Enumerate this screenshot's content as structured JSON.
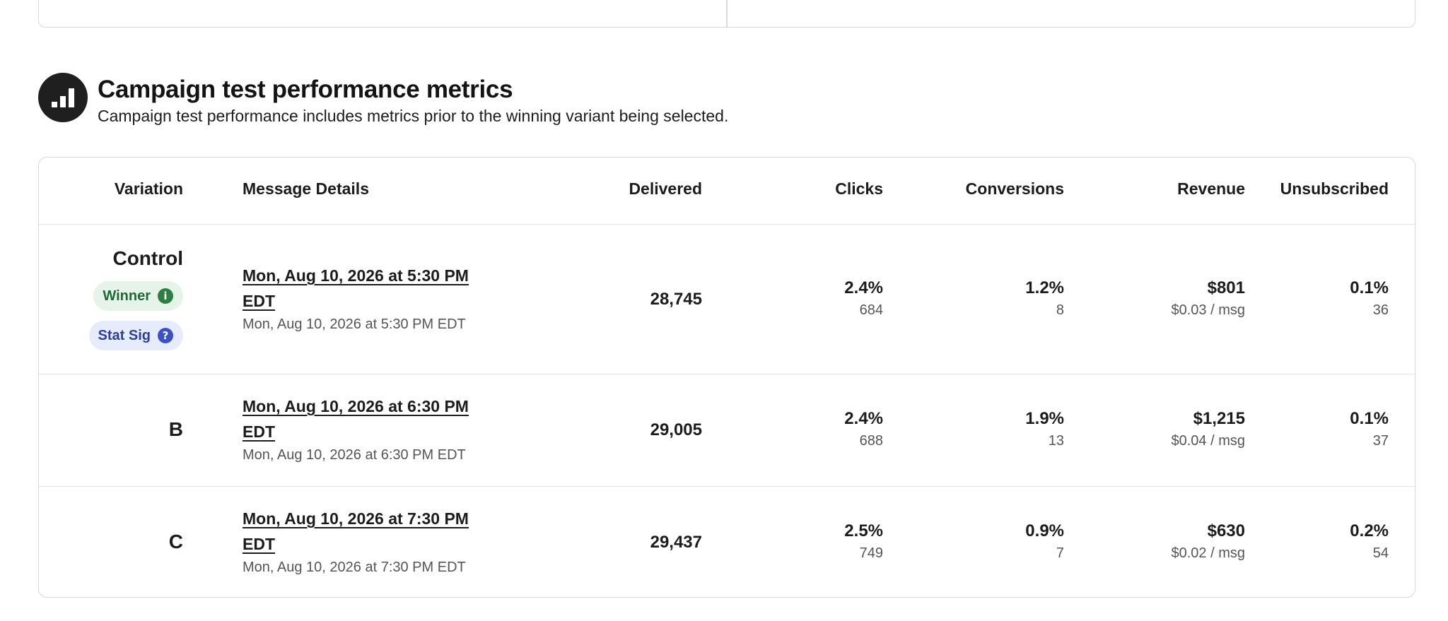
{
  "section": {
    "title": "Campaign test performance metrics",
    "subtitle": "Campaign test performance includes metrics prior to the winning variant being selected.",
    "icon": "bar-chart-icon"
  },
  "table": {
    "headers": {
      "variation": "Variation",
      "message_details": "Message Details",
      "delivered": "Delivered",
      "clicks": "Clicks",
      "conversions": "Conversions",
      "revenue": "Revenue",
      "unsubscribed": "Unsubscribed"
    },
    "rows": [
      {
        "variation": "Control",
        "badges": {
          "winner": "Winner",
          "stat_sig": "Stat Sig"
        },
        "message_link": "Mon, Aug 10, 2026 at 5:30 PM EDT",
        "message_sub": "Mon, Aug 10, 2026 at 5:30 PM EDT",
        "delivered": "28,745",
        "clicks_pct": "2.4%",
        "clicks_count": "684",
        "conversions_pct": "1.2%",
        "conversions_count": "8",
        "revenue": "$801",
        "revenue_per_msg": "$0.03 / msg",
        "unsub_pct": "0.1%",
        "unsub_count": "36"
      },
      {
        "variation": "B",
        "message_link": "Mon, Aug 10, 2026 at 6:30 PM EDT",
        "message_sub": "Mon, Aug 10, 2026 at 6:30 PM EDT",
        "delivered": "29,005",
        "clicks_pct": "2.4%",
        "clicks_count": "688",
        "conversions_pct": "1.9%",
        "conversions_count": "13",
        "revenue": "$1,215",
        "revenue_per_msg": "$0.04 / msg",
        "unsub_pct": "0.1%",
        "unsub_count": "37"
      },
      {
        "variation": "C",
        "message_link": "Mon, Aug 10, 2026 at 7:30 PM EDT",
        "message_sub": "Mon, Aug 10, 2026 at 7:30 PM EDT",
        "delivered": "29,437",
        "clicks_pct": "2.5%",
        "clicks_count": "749",
        "conversions_pct": "0.9%",
        "conversions_count": "7",
        "revenue": "$630",
        "revenue_per_msg": "$0.02 / msg",
        "unsub_pct": "0.2%",
        "unsub_count": "54"
      }
    ]
  },
  "colors": {
    "winner_bg": "#e5f3e9",
    "winner_text": "#1e6a34",
    "statsig_bg": "#e6ecfb",
    "statsig_text": "#2b3f9c"
  }
}
